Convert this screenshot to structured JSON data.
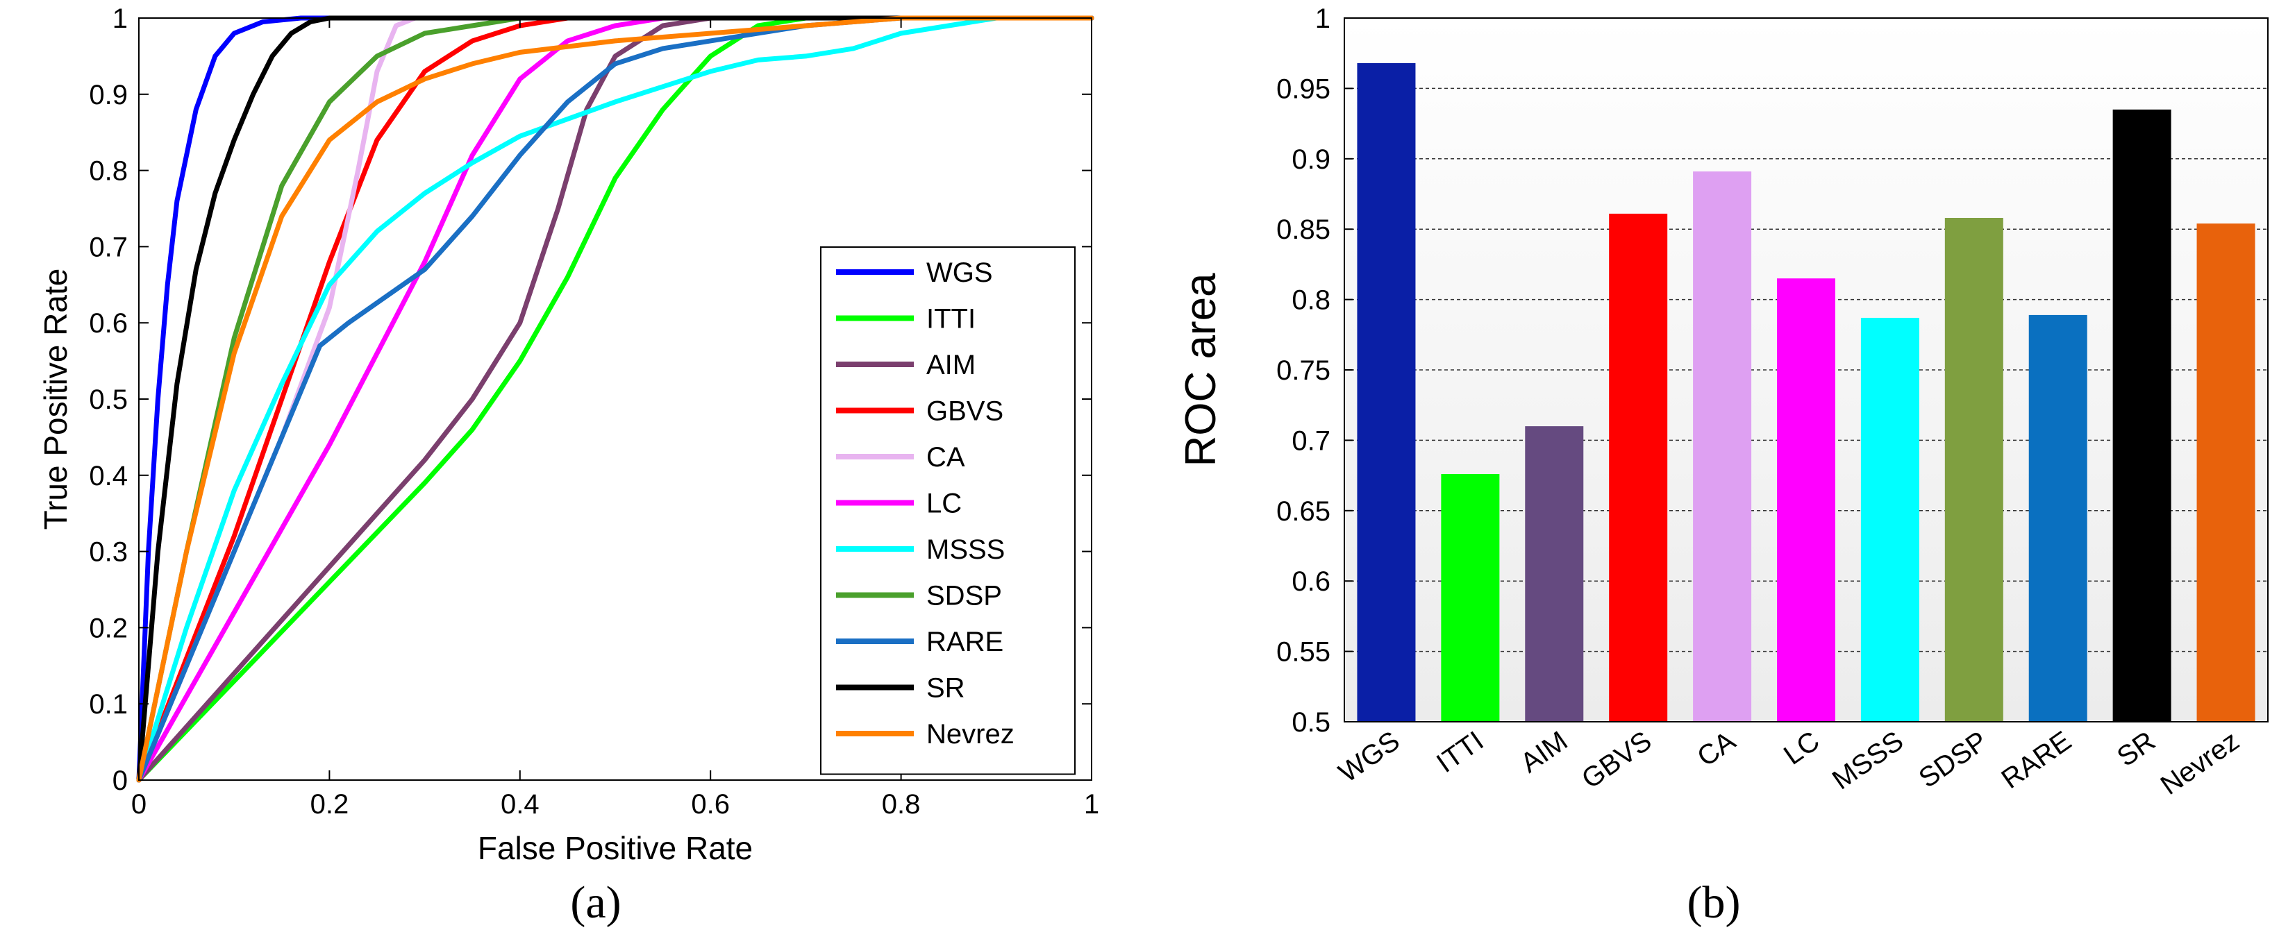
{
  "chart_data": [
    {
      "type": "line",
      "xlabel": "False Positive Rate",
      "ylabel": "True Positive Rate",
      "xlim": [
        0,
        1
      ],
      "ylim": [
        0,
        1
      ],
      "xticks": [
        "0",
        "0.2",
        "0.4",
        "0.6",
        "0.8",
        "1"
      ],
      "yticks": [
        "0",
        "0.1",
        "0.2",
        "0.3",
        "0.4",
        "0.5",
        "0.6",
        "0.7",
        "0.8",
        "0.9",
        "1"
      ],
      "grid": false,
      "legend_position": "bottom-right",
      "panel_label": "(a)",
      "series": [
        {
          "name": "WGS",
          "color": "#0000ff",
          "points": [
            [
              0,
              0
            ],
            [
              0.01,
              0.3
            ],
            [
              0.02,
              0.5
            ],
            [
              0.03,
              0.65
            ],
            [
              0.04,
              0.76
            ],
            [
              0.06,
              0.88
            ],
            [
              0.08,
              0.95
            ],
            [
              0.1,
              0.98
            ],
            [
              0.13,
              0.995
            ],
            [
              0.17,
              1
            ],
            [
              1,
              1
            ]
          ]
        },
        {
          "name": "ITTI",
          "color": "#00ff00",
          "points": [
            [
              0,
              0
            ],
            [
              0.1,
              0.13
            ],
            [
              0.2,
              0.26
            ],
            [
              0.3,
              0.39
            ],
            [
              0.35,
              0.46
            ],
            [
              0.4,
              0.55
            ],
            [
              0.45,
              0.66
            ],
            [
              0.5,
              0.79
            ],
            [
              0.55,
              0.88
            ],
            [
              0.6,
              0.95
            ],
            [
              0.65,
              0.99
            ],
            [
              0.7,
              1
            ],
            [
              1,
              1
            ]
          ]
        },
        {
          "name": "AIM",
          "color": "#7b3f6e",
          "points": [
            [
              0,
              0
            ],
            [
              0.1,
              0.14
            ],
            [
              0.2,
              0.28
            ],
            [
              0.3,
              0.42
            ],
            [
              0.35,
              0.5
            ],
            [
              0.4,
              0.6
            ],
            [
              0.44,
              0.75
            ],
            [
              0.47,
              0.88
            ],
            [
              0.5,
              0.95
            ],
            [
              0.55,
              0.99
            ],
            [
              0.6,
              1
            ],
            [
              1,
              1
            ]
          ]
        },
        {
          "name": "GBVS",
          "color": "#ff0000",
          "points": [
            [
              0,
              0
            ],
            [
              0.05,
              0.16
            ],
            [
              0.1,
              0.32
            ],
            [
              0.15,
              0.5
            ],
            [
              0.2,
              0.68
            ],
            [
              0.25,
              0.84
            ],
            [
              0.3,
              0.93
            ],
            [
              0.35,
              0.97
            ],
            [
              0.4,
              0.99
            ],
            [
              0.45,
              1
            ],
            [
              1,
              1
            ]
          ]
        },
        {
          "name": "CA",
          "color": "#e8b4f0",
          "points": [
            [
              0,
              0
            ],
            [
              0.05,
              0.15
            ],
            [
              0.1,
              0.3
            ],
            [
              0.15,
              0.45
            ],
            [
              0.2,
              0.62
            ],
            [
              0.23,
              0.8
            ],
            [
              0.25,
              0.93
            ],
            [
              0.27,
              0.99
            ],
            [
              0.29,
              1
            ],
            [
              1,
              1
            ]
          ]
        },
        {
          "name": "LC",
          "color": "#ff00ff",
          "points": [
            [
              0,
              0
            ],
            [
              0.1,
              0.22
            ],
            [
              0.2,
              0.44
            ],
            [
              0.25,
              0.56
            ],
            [
              0.3,
              0.68
            ],
            [
              0.35,
              0.82
            ],
            [
              0.4,
              0.92
            ],
            [
              0.45,
              0.97
            ],
            [
              0.5,
              0.99
            ],
            [
              0.55,
              1
            ],
            [
              1,
              1
            ]
          ]
        },
        {
          "name": "MSSS",
          "color": "#00ffff",
          "points": [
            [
              0,
              0
            ],
            [
              0.05,
              0.2
            ],
            [
              0.1,
              0.38
            ],
            [
              0.15,
              0.52
            ],
            [
              0.2,
              0.65
            ],
            [
              0.25,
              0.72
            ],
            [
              0.3,
              0.77
            ],
            [
              0.35,
              0.81
            ],
            [
              0.4,
              0.845
            ],
            [
              0.5,
              0.89
            ],
            [
              0.55,
              0.91
            ],
            [
              0.6,
              0.93
            ],
            [
              0.65,
              0.945
            ],
            [
              0.7,
              0.95
            ],
            [
              0.75,
              0.96
            ],
            [
              0.8,
              0.98
            ],
            [
              0.85,
              0.99
            ],
            [
              0.9,
              1
            ],
            [
              1,
              1
            ]
          ]
        },
        {
          "name": "SDSP",
          "color": "#4aa02c",
          "points": [
            [
              0,
              0
            ],
            [
              0.05,
              0.3
            ],
            [
              0.1,
              0.58
            ],
            [
              0.15,
              0.78
            ],
            [
              0.2,
              0.89
            ],
            [
              0.25,
              0.95
            ],
            [
              0.3,
              0.98
            ],
            [
              0.35,
              0.99
            ],
            [
              0.4,
              1
            ],
            [
              1,
              1
            ]
          ]
        },
        {
          "name": "RARE",
          "color": "#1a6fc4",
          "points": [
            [
              0,
              0
            ],
            [
              0.05,
              0.15
            ],
            [
              0.1,
              0.3
            ],
            [
              0.15,
              0.45
            ],
            [
              0.19,
              0.57
            ],
            [
              0.22,
              0.6
            ],
            [
              0.3,
              0.67
            ],
            [
              0.35,
              0.74
            ],
            [
              0.4,
              0.82
            ],
            [
              0.45,
              0.89
            ],
            [
              0.5,
              0.94
            ],
            [
              0.55,
              0.96
            ],
            [
              0.6,
              0.97
            ],
            [
              0.7,
              0.99
            ],
            [
              0.8,
              1
            ],
            [
              1,
              1
            ]
          ]
        },
        {
          "name": "SR",
          "color": "#000000",
          "points": [
            [
              0,
              0
            ],
            [
              0.02,
              0.3
            ],
            [
              0.04,
              0.52
            ],
            [
              0.06,
              0.67
            ],
            [
              0.08,
              0.77
            ],
            [
              0.1,
              0.84
            ],
            [
              0.12,
              0.9
            ],
            [
              0.14,
              0.95
            ],
            [
              0.16,
              0.98
            ],
            [
              0.18,
              0.995
            ],
            [
              0.2,
              1
            ],
            [
              1,
              1
            ]
          ]
        },
        {
          "name": "Nevrez",
          "color": "#ff8000",
          "points": [
            [
              0,
              0
            ],
            [
              0.05,
              0.3
            ],
            [
              0.1,
              0.56
            ],
            [
              0.15,
              0.74
            ],
            [
              0.2,
              0.84
            ],
            [
              0.25,
              0.89
            ],
            [
              0.3,
              0.92
            ],
            [
              0.35,
              0.94
            ],
            [
              0.4,
              0.955
            ],
            [
              0.5,
              0.97
            ],
            [
              0.6,
              0.98
            ],
            [
              0.7,
              0.99
            ],
            [
              0.8,
              1
            ],
            [
              1,
              1
            ]
          ]
        }
      ]
    },
    {
      "type": "bar",
      "ylabel": "ROC area",
      "ylim": [
        0.5,
        1
      ],
      "yticks": [
        "0.5",
        "0.55",
        "0.6",
        "0.65",
        "0.7",
        "0.75",
        "0.8",
        "0.85",
        "0.9",
        "0.95",
        "1"
      ],
      "grid": true,
      "panel_label": "(b)",
      "categories": [
        "WGS",
        "ITTI",
        "AIM",
        "GBVS",
        "CA",
        "LC",
        "MSSS",
        "SDSP",
        "RARE",
        "SR",
        "Nevrez"
      ],
      "values": [
        0.968,
        0.676,
        0.71,
        0.861,
        0.891,
        0.815,
        0.787,
        0.858,
        0.789,
        0.935,
        0.854
      ],
      "colors": [
        "#0a1fa6",
        "#00ff00",
        "#654a80",
        "#ff0000",
        "#dea0f2",
        "#ff00ff",
        "#00ffff",
        "#7f9f40",
        "#0a70c0",
        "#000000",
        "#e8620c"
      ]
    }
  ]
}
